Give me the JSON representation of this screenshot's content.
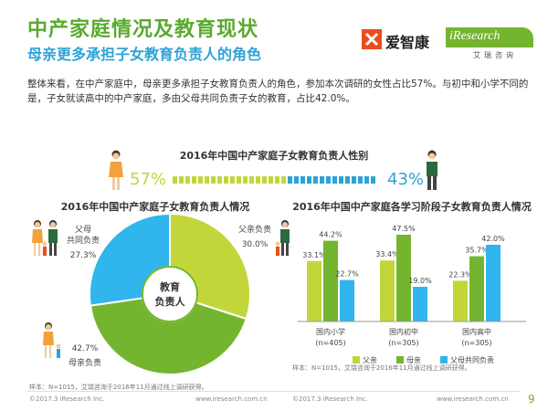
{
  "header": {
    "title": "中产家庭情况及教育现状",
    "subtitle": "母亲更多承担子女教育负责人的角色",
    "logo_aizhikang": "爱智康",
    "logo_iresearch": "iResearch",
    "logo_iresearch_cn": "艾瑞咨询"
  },
  "summary": "整体来看，在中产家庭中，母亲更多承担子女教育负责人的角色，参加本次调研的女性占比57%。与初中和小学不同的是，子女就读高中的中产家庭，多由父母共同负责子女的教育，占比42.0%。",
  "colors": {
    "mother": "#74b52f",
    "father": "#c3d639",
    "both": "#30b5ec",
    "female": "#c3d639",
    "male": "#2ea2d8",
    "title_green": "#5aaa2e",
    "subtitle_blue": "#2ea2d8"
  },
  "gender": {
    "title": "2016年中国中产家庭子女教育负责人性别",
    "female_label": "57%",
    "male_label": "43%"
  },
  "pie": {
    "title": "2016年中国中产家庭子女教育负责人情况",
    "center_label_line1": "教育",
    "center_label_line2": "负责人",
    "father_label": "父亲负责",
    "father_value": "30.0%",
    "both_label_line1": "父母",
    "both_label_line2": "共同负责",
    "both_value": "27.3%",
    "mother_value": "42.7%",
    "mother_label": "母亲负责"
  },
  "bar": {
    "title": "2016年中国中产家庭各学习阶段子女教育负责人情况",
    "cat_names": [
      "国内小学",
      "国内初中",
      "国内高中"
    ],
    "cat_ns": [
      "(n=405)",
      "(n=305)",
      "(n=305)"
    ],
    "legend_father": "父亲",
    "legend_mother": "母亲",
    "legend_both": "父母共同负责"
  },
  "chart_data": [
    {
      "type": "bar",
      "title": "2016年中国中产家庭子女教育负责人性别",
      "categories": [
        "女性",
        "男性"
      ],
      "values": [
        57,
        43
      ]
    },
    {
      "type": "pie",
      "title": "2016年中国中产家庭子女教育负责人情况",
      "labels": [
        "父亲负责",
        "母亲负责",
        "父母共同负责"
      ],
      "values": [
        30.0,
        42.7,
        27.3
      ]
    },
    {
      "type": "bar",
      "title": "2016年中国中产家庭各学习阶段子女教育负责人情况",
      "categories": [
        "国内小学",
        "国内初中",
        "国内高中"
      ],
      "series": [
        {
          "name": "父亲",
          "values": [
            33.1,
            33.4,
            22.3
          ]
        },
        {
          "name": "母亲",
          "values": [
            44.2,
            47.5,
            35.7
          ]
        },
        {
          "name": "父母共同负责",
          "values": [
            22.7,
            19.0,
            42.0
          ]
        }
      ],
      "ylim": [
        0,
        50
      ],
      "legend": "bottom"
    }
  ],
  "footer": {
    "footnote_left": "样本：N=1015，艾瑞咨询于2016年11月通过线上调研获得。",
    "footnote_right": "样本：N=1015，艾瑞咨询于2016年11月通过线上调研获得。",
    "copyright": "©2017.3 iResearch Inc.",
    "site": "www.iresearch.com.cn",
    "page_number": "9"
  }
}
